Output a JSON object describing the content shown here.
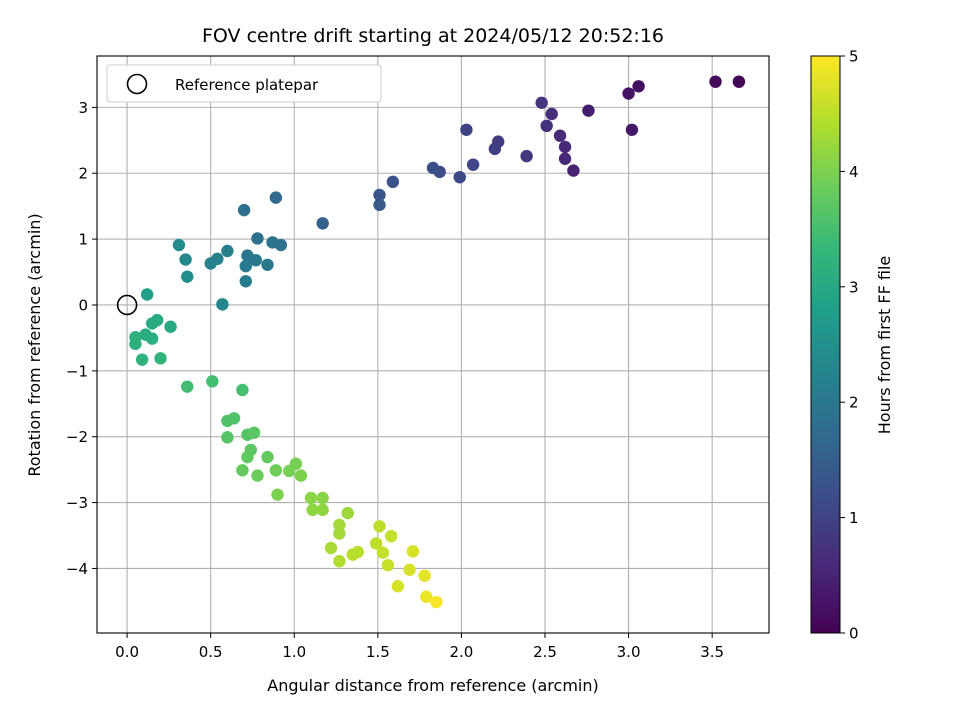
{
  "chart_data": {
    "type": "scatter",
    "title": "FOV centre drift starting at 2024/05/12 20:52:16",
    "xlabel": "Angular distance from reference (arcmin)",
    "ylabel": "Rotation from reference (arcmin)",
    "xlim": [
      -0.18,
      3.84
    ],
    "ylim": [
      -4.98,
      3.78
    ],
    "xticks": [
      0.0,
      0.5,
      1.0,
      1.5,
      2.0,
      2.5,
      3.0,
      3.5
    ],
    "xtick_labels": [
      "0.0",
      "0.5",
      "1.0",
      "1.5",
      "2.0",
      "2.5",
      "3.0",
      "3.5"
    ],
    "yticks": [
      -4,
      -3,
      -2,
      -1,
      0,
      1,
      2,
      3
    ],
    "ytick_labels": [
      "−4",
      "−3",
      "−2",
      "−1",
      "0",
      "1",
      "2",
      "3"
    ],
    "grid": true,
    "legend": {
      "placement": "upper-left",
      "entries": [
        "Reference platepar"
      ]
    },
    "reference_point": {
      "x": 0.0,
      "y": 0.0,
      "label": "Reference platepar"
    },
    "colorbar": {
      "label": "Hours from first FF file",
      "min": 0,
      "max": 5,
      "ticks": [
        0,
        1,
        2,
        3,
        4,
        5
      ],
      "tick_labels": [
        "0",
        "1",
        "2",
        "3",
        "4",
        "5"
      ],
      "colormap": [
        "#440154",
        "#482878",
        "#3e4989",
        "#31688e",
        "#26828e",
        "#1f9e89",
        "#35b779",
        "#6ece58",
        "#b5de2b",
        "#fde725"
      ]
    },
    "points": [
      {
        "x": 3.66,
        "y": 3.39,
        "c": 0.05
      },
      {
        "x": 3.52,
        "y": 3.39,
        "c": 0.1
      },
      {
        "x": 3.06,
        "y": 3.32,
        "c": 0.2
      },
      {
        "x": 3.0,
        "y": 3.21,
        "c": 0.25
      },
      {
        "x": 3.02,
        "y": 2.66,
        "c": 0.3
      },
      {
        "x": 2.76,
        "y": 2.95,
        "c": 0.4
      },
      {
        "x": 2.67,
        "y": 2.04,
        "c": 0.5
      },
      {
        "x": 2.62,
        "y": 2.22,
        "c": 0.55
      },
      {
        "x": 2.62,
        "y": 2.4,
        "c": 0.6
      },
      {
        "x": 2.59,
        "y": 2.57,
        "c": 0.6
      },
      {
        "x": 2.54,
        "y": 2.9,
        "c": 0.65
      },
      {
        "x": 2.51,
        "y": 2.72,
        "c": 0.7
      },
      {
        "x": 2.48,
        "y": 3.07,
        "c": 0.75
      },
      {
        "x": 2.39,
        "y": 2.26,
        "c": 0.8
      },
      {
        "x": 2.22,
        "y": 2.48,
        "c": 0.9
      },
      {
        "x": 2.2,
        "y": 2.37,
        "c": 0.95
      },
      {
        "x": 2.03,
        "y": 2.66,
        "c": 1.0
      },
      {
        "x": 2.07,
        "y": 2.13,
        "c": 1.05
      },
      {
        "x": 1.99,
        "y": 1.94,
        "c": 1.1
      },
      {
        "x": 1.87,
        "y": 2.02,
        "c": 1.15
      },
      {
        "x": 1.83,
        "y": 2.08,
        "c": 1.2
      },
      {
        "x": 1.59,
        "y": 1.87,
        "c": 1.3
      },
      {
        "x": 1.51,
        "y": 1.67,
        "c": 1.35
      },
      {
        "x": 1.51,
        "y": 1.52,
        "c": 1.4
      },
      {
        "x": 1.17,
        "y": 1.24,
        "c": 1.55
      },
      {
        "x": 0.89,
        "y": 1.63,
        "c": 1.7
      },
      {
        "x": 0.7,
        "y": 1.44,
        "c": 1.8
      },
      {
        "x": 0.78,
        "y": 1.01,
        "c": 1.85
      },
      {
        "x": 0.87,
        "y": 0.95,
        "c": 1.9
      },
      {
        "x": 0.92,
        "y": 0.91,
        "c": 1.9
      },
      {
        "x": 0.72,
        "y": 0.75,
        "c": 1.95
      },
      {
        "x": 0.77,
        "y": 0.68,
        "c": 2.0
      },
      {
        "x": 0.84,
        "y": 0.61,
        "c": 2.0
      },
      {
        "x": 0.71,
        "y": 0.59,
        "c": 2.05
      },
      {
        "x": 0.71,
        "y": 0.36,
        "c": 2.1
      },
      {
        "x": 0.6,
        "y": 0.82,
        "c": 2.15
      },
      {
        "x": 0.54,
        "y": 0.7,
        "c": 2.2
      },
      {
        "x": 0.5,
        "y": 0.63,
        "c": 2.25
      },
      {
        "x": 0.57,
        "y": 0.01,
        "c": 2.3
      },
      {
        "x": 0.35,
        "y": 0.69,
        "c": 2.35
      },
      {
        "x": 0.31,
        "y": 0.91,
        "c": 2.4
      },
      {
        "x": 0.36,
        "y": 0.43,
        "c": 2.45
      },
      {
        "x": 0.12,
        "y": 0.16,
        "c": 2.8
      },
      {
        "x": 0.26,
        "y": -0.33,
        "c": 3.0
      },
      {
        "x": 0.18,
        "y": -0.23,
        "c": 3.05
      },
      {
        "x": 0.15,
        "y": -0.28,
        "c": 3.05
      },
      {
        "x": 0.15,
        "y": -0.51,
        "c": 3.1
      },
      {
        "x": 0.11,
        "y": -0.45,
        "c": 3.1
      },
      {
        "x": 0.05,
        "y": -0.49,
        "c": 3.15
      },
      {
        "x": 0.05,
        "y": -0.59,
        "c": 3.15
      },
      {
        "x": 0.09,
        "y": -0.83,
        "c": 3.2
      },
      {
        "x": 0.2,
        "y": -0.81,
        "c": 3.25
      },
      {
        "x": 0.36,
        "y": -1.24,
        "c": 3.45
      },
      {
        "x": 0.51,
        "y": -1.16,
        "c": 3.5
      },
      {
        "x": 0.69,
        "y": -1.29,
        "c": 3.5
      },
      {
        "x": 0.6,
        "y": -1.76,
        "c": 3.6
      },
      {
        "x": 0.64,
        "y": -1.72,
        "c": 3.6
      },
      {
        "x": 0.6,
        "y": -2.01,
        "c": 3.65
      },
      {
        "x": 0.72,
        "y": -1.97,
        "c": 3.65
      },
      {
        "x": 0.76,
        "y": -1.94,
        "c": 3.7
      },
      {
        "x": 0.74,
        "y": -2.2,
        "c": 3.7
      },
      {
        "x": 0.72,
        "y": -2.31,
        "c": 3.75
      },
      {
        "x": 0.84,
        "y": -2.31,
        "c": 3.8
      },
      {
        "x": 0.69,
        "y": -2.51,
        "c": 3.8
      },
      {
        "x": 0.78,
        "y": -2.59,
        "c": 3.85
      },
      {
        "x": 0.89,
        "y": -2.51,
        "c": 3.9
      },
      {
        "x": 0.97,
        "y": -2.52,
        "c": 3.95
      },
      {
        "x": 1.01,
        "y": -2.41,
        "c": 3.95
      },
      {
        "x": 1.04,
        "y": -2.59,
        "c": 4.0
      },
      {
        "x": 0.9,
        "y": -2.88,
        "c": 4.0
      },
      {
        "x": 1.1,
        "y": -2.93,
        "c": 4.1
      },
      {
        "x": 1.17,
        "y": -2.93,
        "c": 4.1
      },
      {
        "x": 1.11,
        "y": -3.11,
        "c": 4.15
      },
      {
        "x": 1.17,
        "y": -3.11,
        "c": 4.15
      },
      {
        "x": 1.32,
        "y": -3.16,
        "c": 4.25
      },
      {
        "x": 1.27,
        "y": -3.34,
        "c": 4.3
      },
      {
        "x": 1.27,
        "y": -3.47,
        "c": 4.3
      },
      {
        "x": 1.22,
        "y": -3.69,
        "c": 4.35
      },
      {
        "x": 1.27,
        "y": -3.89,
        "c": 4.4
      },
      {
        "x": 1.35,
        "y": -3.79,
        "c": 4.45
      },
      {
        "x": 1.38,
        "y": -3.75,
        "c": 4.45
      },
      {
        "x": 1.49,
        "y": -3.62,
        "c": 4.5
      },
      {
        "x": 1.51,
        "y": -3.36,
        "c": 4.5
      },
      {
        "x": 1.53,
        "y": -3.76,
        "c": 4.55
      },
      {
        "x": 1.58,
        "y": -3.51,
        "c": 4.55
      },
      {
        "x": 1.56,
        "y": -3.95,
        "c": 4.6
      },
      {
        "x": 1.69,
        "y": -4.02,
        "c": 4.7
      },
      {
        "x": 1.71,
        "y": -3.74,
        "c": 4.7
      },
      {
        "x": 1.62,
        "y": -4.27,
        "c": 4.7
      },
      {
        "x": 1.78,
        "y": -4.11,
        "c": 4.8
      },
      {
        "x": 1.79,
        "y": -4.43,
        "c": 4.85
      },
      {
        "x": 1.85,
        "y": -4.51,
        "c": 4.95
      }
    ]
  }
}
